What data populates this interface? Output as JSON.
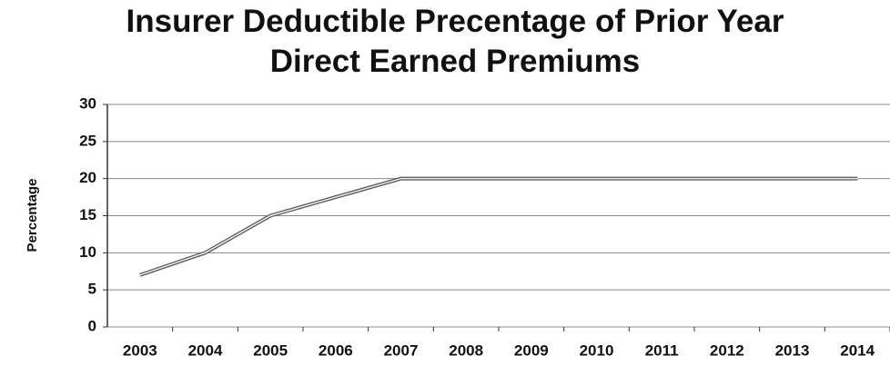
{
  "chart_data": {
    "type": "line",
    "title": "Insurer Deductible Precentage of Prior Year Direct Earned Premiums",
    "ylabel": "Percentage",
    "categories": [
      "2003",
      "2004",
      "2005",
      "2006",
      "2007",
      "2008",
      "2009",
      "2010",
      "2011",
      "2012",
      "2013",
      "2014"
    ],
    "values": [
      7,
      10,
      15,
      17.5,
      20,
      20,
      20,
      20,
      20,
      20,
      20,
      20
    ],
    "color": "#555555",
    "ylim": [
      0,
      30
    ],
    "yticks": [
      0,
      5,
      10,
      15,
      20,
      25,
      30
    ],
    "grid": true
  }
}
